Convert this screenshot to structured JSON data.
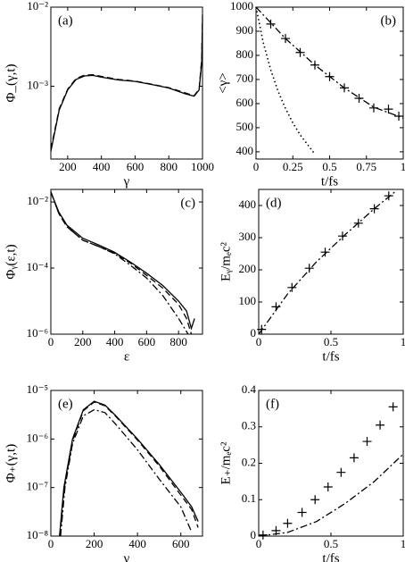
{
  "chart_data": [
    {
      "type": "line",
      "annotation": "(a)",
      "xlabel": "γ",
      "ylabel": "Φ_(γ,t)",
      "ylog": true,
      "xlim": [
        100,
        1000
      ],
      "xticks": [
        200,
        400,
        600,
        800,
        1000
      ],
      "ylim": [
        0.00012,
        0.01
      ],
      "yticks": [
        {
          "value": 0.001,
          "label": "10⁻³"
        },
        {
          "value": 0.01,
          "label": "10⁻²"
        }
      ],
      "series": [
        {
          "style": "solid",
          "color": "#000",
          "x": [
            100,
            150,
            200,
            250,
            300,
            350,
            400,
            500,
            600,
            700,
            800,
            900,
            950,
            980,
            995,
            1000
          ],
          "values": [
            0.00015,
            0.0005,
            0.0009,
            0.00122,
            0.00135,
            0.00137,
            0.0013,
            0.0012,
            0.00115,
            0.00105,
            0.00095,
            0.0008,
            0.00075,
            0.0009,
            0.002,
            0.007
          ]
        },
        {
          "style": "dashed",
          "color": "#000",
          "x": [
            100,
            150,
            200,
            250,
            300,
            350,
            400,
            500,
            600,
            700,
            800,
            900,
            950,
            980,
            995,
            1000
          ],
          "values": [
            0.00016,
            0.00052,
            0.00092,
            0.00125,
            0.00138,
            0.0014,
            0.00133,
            0.00122,
            0.00116,
            0.00106,
            0.00096,
            0.00082,
            0.00076,
            0.00092,
            0.0022,
            0.008
          ]
        }
      ]
    },
    {
      "type": "line",
      "annotation": "(b)",
      "xlabel": "t/fs",
      "ylabel": "<γ>",
      "xlim": [
        0,
        1
      ],
      "xticks": [
        0,
        0.25,
        0.5,
        0.75,
        1
      ],
      "ylim": [
        370,
        1000
      ],
      "yticks": [
        400,
        500,
        600,
        700,
        800,
        900,
        1000
      ],
      "series": [
        {
          "style": "markers",
          "color": "#000",
          "x": [
            0.1,
            0.2,
            0.3,
            0.4,
            0.5,
            0.6,
            0.7,
            0.8,
            0.9,
            0.97
          ],
          "values": [
            930,
            870,
            812,
            760,
            712,
            665,
            622,
            582,
            577,
            548
          ]
        },
        {
          "style": "dashdot",
          "color": "#000",
          "x": [
            0,
            0.2,
            0.4,
            0.6,
            0.8,
            1
          ],
          "values": [
            1000,
            870,
            760,
            665,
            585,
            540
          ]
        },
        {
          "style": "dotted",
          "color": "#000",
          "x": [
            0,
            0.05,
            0.1,
            0.15,
            0.2,
            0.25,
            0.3,
            0.35,
            0.4
          ],
          "values": [
            1000,
            850,
            740,
            650,
            580,
            520,
            470,
            430,
            390
          ]
        }
      ]
    },
    {
      "type": "line",
      "annotation": "(c)",
      "xlabel": "ε",
      "ylabel": "Φᵧ(ε,t)",
      "ylog": true,
      "xlim": [
        0,
        950
      ],
      "xticks": [
        0,
        200,
        400,
        600,
        800
      ],
      "ylim": [
        1e-06,
        0.024
      ],
      "yticks": [
        {
          "value": 1e-06,
          "label": "10⁻⁶"
        },
        {
          "value": 0.0001,
          "label": "10⁻⁴"
        },
        {
          "value": 0.01,
          "label": "10⁻²"
        }
      ],
      "series": [
        {
          "style": "solid",
          "color": "#000",
          "x": [
            0,
            50,
            100,
            200,
            300,
            400,
            500,
            600,
            700,
            800,
            850,
            880,
            900
          ],
          "values": [
            0.02,
            0.005,
            0.002,
            0.0008,
            0.0005,
            0.0003,
            0.00015,
            7e-05,
            3e-05,
            1e-05,
            5e-06,
            1.5e-06,
            3e-06
          ]
        },
        {
          "style": "dashed",
          "color": "#000",
          "x": [
            0,
            50,
            100,
            200,
            300,
            400,
            500,
            600,
            700,
            800,
            850,
            880
          ],
          "values": [
            0.02,
            0.0045,
            0.0018,
            0.0007,
            0.00045,
            0.00028,
            0.00014,
            6e-05,
            2.5e-05,
            8e-06,
            3e-06,
            1e-06
          ]
        },
        {
          "style": "dashdot",
          "color": "#000",
          "x": [
            0,
            50,
            100,
            200,
            300,
            400,
            500,
            600,
            700,
            800,
            860
          ],
          "values": [
            0.02,
            0.0045,
            0.0018,
            0.0007,
            0.00045,
            0.00027,
            0.00012,
            5e-05,
            1.5e-05,
            3e-06,
            1e-06
          ]
        }
      ]
    },
    {
      "type": "line",
      "annotation": "(d)",
      "xlabel": "t/fs",
      "ylabel": "Eᵧ/mₑc²",
      "xlim": [
        0,
        1
      ],
      "xticks": [
        0,
        0.5,
        1
      ],
      "ylim": [
        0,
        450
      ],
      "yticks": [
        0,
        100,
        200,
        300,
        400
      ],
      "series": [
        {
          "style": "markers",
          "color": "#000",
          "x": [
            0.02,
            0.12,
            0.23,
            0.35,
            0.46,
            0.58,
            0.69,
            0.8,
            0.9
          ],
          "values": [
            15,
            85,
            145,
            205,
            255,
            305,
            345,
            390,
            430
          ]
        },
        {
          "style": "dashdot",
          "color": "#000",
          "x": [
            0,
            0.2,
            0.4,
            0.6,
            0.8,
            0.95
          ],
          "values": [
            0,
            125,
            225,
            310,
            390,
            445
          ]
        }
      ]
    },
    {
      "type": "line",
      "annotation": "(e)",
      "xlabel": "γ",
      "ylabel": "Φ₊(γ,t)",
      "ylog": true,
      "xlim": [
        0,
        700
      ],
      "xticks": [
        0,
        200,
        400,
        600
      ],
      "ylim": [
        1e-08,
        1e-05
      ],
      "yticks": [
        {
          "value": 1e-08,
          "label": "10⁻⁸"
        },
        {
          "value": 1e-07,
          "label": "10⁻⁷"
        },
        {
          "value": 1e-06,
          "label": "10⁻⁶"
        },
        {
          "value": 1e-05,
          "label": "10⁻⁵"
        }
      ],
      "series": [
        {
          "style": "solid",
          "color": "#000",
          "x": [
            40,
            60,
            100,
            150,
            200,
            250,
            300,
            400,
            500,
            600,
            650,
            680
          ],
          "values": [
            1e-08,
            1e-07,
            1e-06,
            4e-06,
            6e-06,
            5e-06,
            3e-06,
            1e-06,
            3e-07,
            8e-08,
            4e-08,
            2e-08
          ]
        },
        {
          "style": "dashed",
          "color": "#000",
          "x": [
            42,
            62,
            100,
            150,
            200,
            250,
            300,
            400,
            500,
            600,
            650,
            680
          ],
          "values": [
            1e-08,
            1e-07,
            9e-07,
            3.8e-06,
            5.8e-06,
            4.8e-06,
            2.9e-06,
            9.5e-07,
            2.8e-07,
            7e-08,
            3.5e-08,
            1.5e-08
          ]
        },
        {
          "style": "dashdot",
          "color": "#000",
          "x": [
            45,
            65,
            100,
            150,
            200,
            250,
            300,
            400,
            500,
            600,
            650
          ],
          "values": [
            1e-08,
            1e-07,
            8e-07,
            3e-06,
            4e-06,
            3.5e-06,
            2e-06,
            6e-07,
            1.5e-07,
            4e-08,
            1.2e-08
          ]
        }
      ]
    },
    {
      "type": "line",
      "annotation": "(f)",
      "xlabel": "t/fs",
      "ylabel": "E₊/mₑc²",
      "xlim": [
        0,
        1
      ],
      "xticks": [
        0,
        0.5,
        1
      ],
      "ylim": [
        0,
        0.4
      ],
      "yticks": [
        0,
        0.1,
        0.2,
        0.3,
        0.4
      ],
      "series": [
        {
          "style": "markers",
          "color": "#000",
          "x": [
            0.03,
            0.12,
            0.2,
            0.3,
            0.39,
            0.48,
            0.57,
            0.66,
            0.75,
            0.84,
            0.93
          ],
          "values": [
            0.003,
            0.015,
            0.035,
            0.065,
            0.1,
            0.135,
            0.175,
            0.215,
            0.26,
            0.305,
            0.355
          ]
        },
        {
          "style": "dashdot",
          "color": "#000",
          "x": [
            0,
            0.2,
            0.4,
            0.6,
            0.8,
            1
          ],
          "values": [
            0,
            0.01,
            0.04,
            0.09,
            0.15,
            0.225
          ]
        }
      ]
    }
  ]
}
